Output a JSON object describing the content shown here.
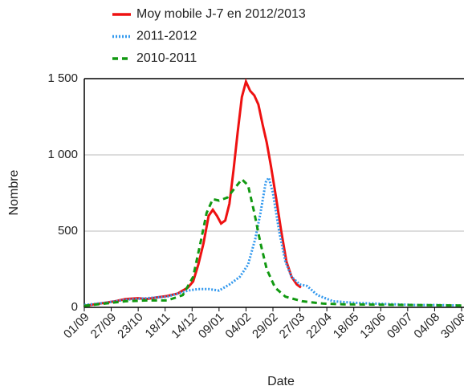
{
  "chart_data": {
    "type": "line",
    "x_label": "Date",
    "y_label": "Nombre",
    "xlim": [
      0,
      364
    ],
    "xticks": [
      {
        "value": 0,
        "label": "01/09"
      },
      {
        "value": 26,
        "label": "27/09"
      },
      {
        "value": 52,
        "label": "23/10"
      },
      {
        "value": 78,
        "label": "18/11"
      },
      {
        "value": 104,
        "label": "14/12"
      },
      {
        "value": 130,
        "label": "09/01"
      },
      {
        "value": 156,
        "label": "04/02"
      },
      {
        "value": 182,
        "label": "29/02"
      },
      {
        "value": 208,
        "label": "27/03"
      },
      {
        "value": 234,
        "label": "22/04"
      },
      {
        "value": 260,
        "label": "18/05"
      },
      {
        "value": 286,
        "label": "13/06"
      },
      {
        "value": 312,
        "label": "09/07"
      },
      {
        "value": 338,
        "label": "04/08"
      },
      {
        "value": 364,
        "label": "30/08"
      }
    ],
    "ylim": [
      0,
      1500
    ],
    "yticks": [
      0,
      500,
      {
        "value": 1000,
        "label": "1 000"
      },
      {
        "value": 1500,
        "label": "1 500"
      }
    ],
    "grid": true,
    "series": [
      {
        "name": "Moy mobile J-7 en 2012/2013",
        "color": "#ee1111",
        "dash": "solid",
        "x": [
          0,
          10,
          20,
          30,
          40,
          52,
          60,
          70,
          80,
          90,
          100,
          105,
          110,
          115,
          120,
          124,
          128,
          132,
          136,
          140,
          144,
          148,
          152,
          156,
          160,
          164,
          168,
          172,
          176,
          180,
          185,
          190,
          195,
          200,
          205,
          209
        ],
        "values": [
          10,
          20,
          30,
          40,
          55,
          60,
          55,
          65,
          75,
          90,
          130,
          170,
          280,
          420,
          600,
          640,
          600,
          550,
          570,
          680,
          900,
          1150,
          1380,
          1480,
          1420,
          1390,
          1330,
          1200,
          1080,
          930,
          720,
          500,
          300,
          200,
          150,
          130
        ]
      },
      {
        "name": "2011-2012",
        "color": "#3399ee",
        "dash": "dotted",
        "x": [
          0,
          20,
          40,
          60,
          80,
          100,
          110,
          120,
          130,
          140,
          150,
          158,
          165,
          170,
          175,
          178,
          182,
          188,
          194,
          200,
          208,
          215,
          225,
          240,
          260,
          280,
          300,
          320,
          340,
          364
        ],
        "values": [
          15,
          30,
          50,
          60,
          70,
          110,
          120,
          120,
          110,
          150,
          200,
          280,
          450,
          620,
          820,
          850,
          750,
          500,
          300,
          200,
          150,
          140,
          80,
          40,
          30,
          25,
          20,
          15,
          15,
          12
        ]
      },
      {
        "name": "2010-2011",
        "color": "#119911",
        "dash": "dashed",
        "x": [
          0,
          20,
          40,
          60,
          80,
          95,
          105,
          112,
          118,
          124,
          130,
          138,
          145,
          152,
          158,
          164,
          170,
          176,
          184,
          194,
          210,
          230,
          250,
          280,
          320,
          364
        ],
        "values": [
          10,
          25,
          40,
          45,
          45,
          80,
          200,
          420,
          620,
          710,
          700,
          720,
          780,
          840,
          800,
          620,
          420,
          250,
          130,
          70,
          40,
          25,
          20,
          18,
          15,
          12
        ]
      }
    ]
  }
}
